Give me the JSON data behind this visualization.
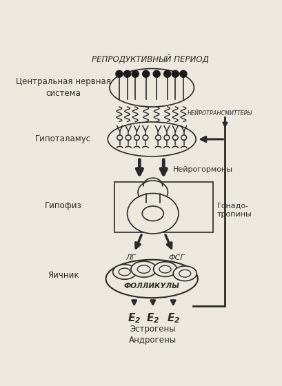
{
  "title": "РЕПРОДУКТИВНЫЙ ПЕРИОД",
  "label_cns": "Центральная нервная\nсистема",
  "label_hypothalamus": "Гипоталамус",
  "label_hypophysis": "Гипофиз",
  "label_ovary": "Яичник",
  "label_neurotransmitters": "НЕЙРОТРАНСМИТТЕРЫ",
  "label_neurohormones": "Нейрогормоны",
  "label_gonadotropins": "Гонадо-\nтропины",
  "label_lh": "ЛГ",
  "label_fsh": "ФСГ",
  "label_follicles": "ФОЛЛИКУЛЫ",
  "label_estrogens": "Эстрогены\nАндрогены",
  "bg_color": "#ede8de",
  "line_color": "#2a2a2a",
  "dark_dot_color": "#1a1a1a",
  "fig_width": 4.1,
  "fig_height": 5.6,
  "dpi": 100
}
